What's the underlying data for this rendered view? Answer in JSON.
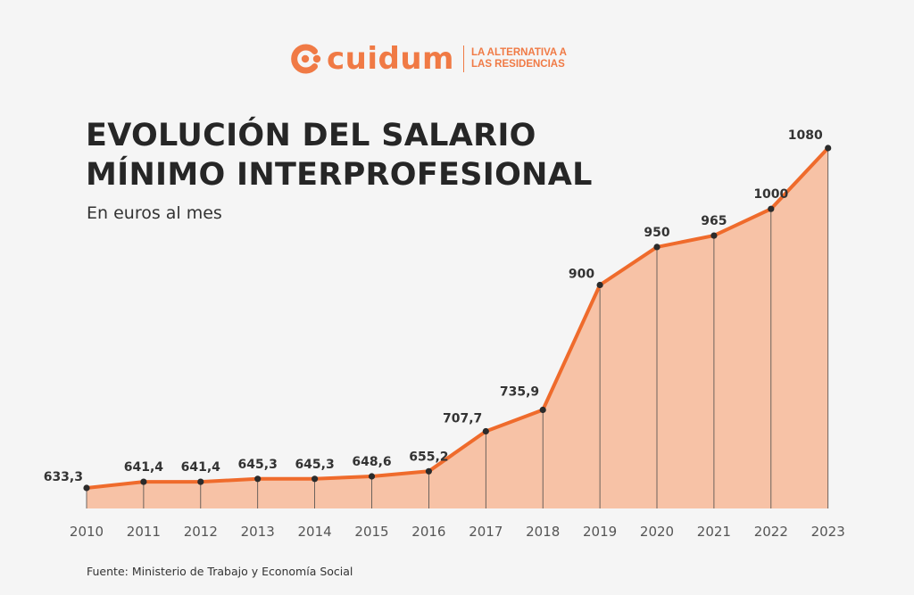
{
  "logo": {
    "wordmark": "cuidum",
    "tagline_line1": "LA ALTERNATIVA A",
    "tagline_line2": "LAS RESIDENCIAS"
  },
  "title_line1": "EVOLUCIÓN DEL SALARIO",
  "title_line2": "MÍNIMO INTERPROFESIONAL",
  "subtitle": "En euros al mes",
  "source": "Fuente: Ministerio de Trabajo y Economía Social",
  "colors": {
    "accent": "#f07a45",
    "line": "#ef6b2c",
    "area": "#f7c2a6",
    "text": "#262626"
  },
  "chart_data": {
    "type": "area",
    "categories": [
      "2010",
      "2011",
      "2012",
      "2013",
      "2014",
      "2015",
      "2016",
      "2017",
      "2018",
      "2019",
      "2020",
      "2021",
      "2022",
      "2023"
    ],
    "values": [
      633.3,
      641.4,
      641.4,
      645.3,
      645.3,
      648.6,
      655.2,
      707.7,
      735.9,
      900,
      950,
      965,
      1000,
      1080
    ],
    "data_labels": [
      "633,3",
      "641,4",
      "641,4",
      "645,3",
      "645,3",
      "648,6",
      "655,2",
      "707,7",
      "735,9",
      "900",
      "950",
      "965",
      "1000",
      "1080"
    ],
    "title": "EVOLUCIÓN DEL SALARIO MÍNIMO INTERPROFESIONAL",
    "subtitle": "En euros al mes",
    "xlabel": "",
    "ylabel": "",
    "grid": false,
    "legend": "none"
  }
}
